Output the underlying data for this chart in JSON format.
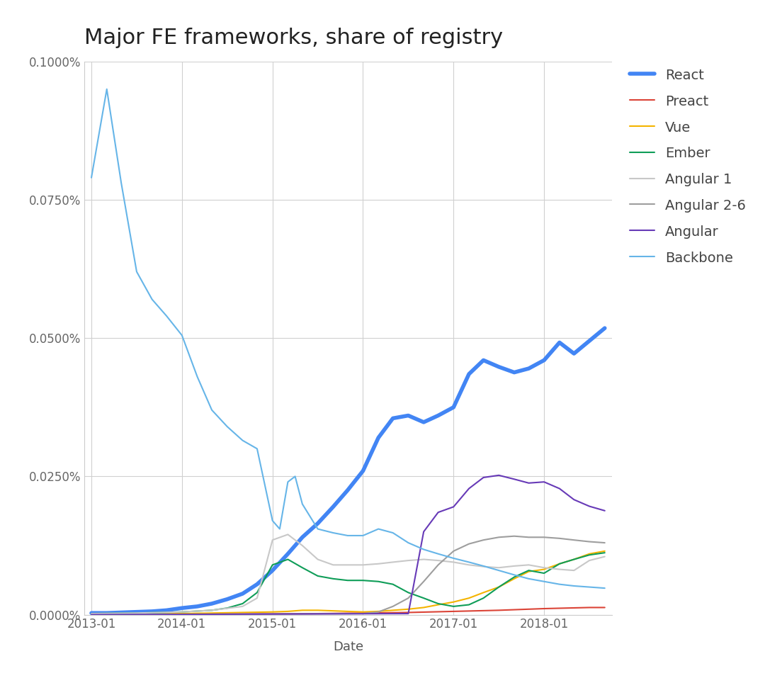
{
  "title": "Major FE frameworks, share of registry",
  "xlabel": "Date",
  "ylabel": "",
  "background_color": "#ffffff",
  "plot_bg_color": "#ffffff",
  "ylim": [
    0,
    0.001
  ],
  "yticks": [
    0.0,
    0.00025,
    0.0005,
    0.00075,
    0.001
  ],
  "ytick_labels": [
    "0.0000%",
    "0.0250%",
    "0.0500%",
    "0.0750%",
    "0.1000%"
  ],
  "xtick_labels": [
    "2013-01",
    "2014-01",
    "2015-01",
    "2016-01",
    "2017-01",
    "2018-01"
  ],
  "xtick_positions": [
    2013.0,
    2014.0,
    2015.0,
    2016.0,
    2017.0,
    2018.0
  ],
  "xlim": [
    2012.92,
    2018.75
  ],
  "series": {
    "React": {
      "color": "#4285f4",
      "linewidth": 4.0,
      "data": [
        [
          2013.0,
          3e-06
        ],
        [
          2013.17,
          3e-06
        ],
        [
          2013.33,
          4e-06
        ],
        [
          2013.5,
          5e-06
        ],
        [
          2013.67,
          6e-06
        ],
        [
          2013.83,
          8e-06
        ],
        [
          2014.0,
          1.2e-05
        ],
        [
          2014.17,
          1.5e-05
        ],
        [
          2014.33,
          2e-05
        ],
        [
          2014.5,
          2.8e-05
        ],
        [
          2014.67,
          3.8e-05
        ],
        [
          2014.83,
          5.5e-05
        ],
        [
          2015.0,
          8e-05
        ],
        [
          2015.17,
          0.00011
        ],
        [
          2015.33,
          0.00014
        ],
        [
          2015.5,
          0.000165
        ],
        [
          2015.67,
          0.000195
        ],
        [
          2015.83,
          0.000225
        ],
        [
          2016.0,
          0.00026
        ],
        [
          2016.17,
          0.00032
        ],
        [
          2016.33,
          0.000355
        ],
        [
          2016.5,
          0.00036
        ],
        [
          2016.67,
          0.000348
        ],
        [
          2016.83,
          0.00036
        ],
        [
          2017.0,
          0.000375
        ],
        [
          2017.17,
          0.000435
        ],
        [
          2017.33,
          0.00046
        ],
        [
          2017.5,
          0.000448
        ],
        [
          2017.67,
          0.000438
        ],
        [
          2017.83,
          0.000445
        ],
        [
          2018.0,
          0.00046
        ],
        [
          2018.17,
          0.000492
        ],
        [
          2018.33,
          0.000472
        ],
        [
          2018.5,
          0.000495
        ],
        [
          2018.67,
          0.000518
        ]
      ]
    },
    "Preact": {
      "color": "#db4437",
      "linewidth": 1.5,
      "data": [
        [
          2013.0,
          5e-07
        ],
        [
          2015.0,
          1.5e-06
        ],
        [
          2015.5,
          2e-06
        ],
        [
          2016.0,
          3e-06
        ],
        [
          2016.5,
          4e-06
        ],
        [
          2017.0,
          6e-06
        ],
        [
          2017.5,
          8e-06
        ],
        [
          2018.0,
          1.1e-05
        ],
        [
          2018.5,
          1.3e-05
        ],
        [
          2018.67,
          1.3e-05
        ]
      ]
    },
    "Vue": {
      "color": "#f4b400",
      "linewidth": 1.5,
      "data": [
        [
          2013.0,
          5e-07
        ],
        [
          2014.0,
          2e-06
        ],
        [
          2014.33,
          3e-06
        ],
        [
          2014.67,
          4e-06
        ],
        [
          2015.0,
          5e-06
        ],
        [
          2015.17,
          6e-06
        ],
        [
          2015.33,
          8e-06
        ],
        [
          2015.5,
          8e-06
        ],
        [
          2015.67,
          7e-06
        ],
        [
          2015.83,
          6e-06
        ],
        [
          2016.0,
          5e-06
        ],
        [
          2016.17,
          6e-06
        ],
        [
          2016.33,
          8e-06
        ],
        [
          2016.5,
          1e-05
        ],
        [
          2016.67,
          1.3e-05
        ],
        [
          2016.83,
          1.8e-05
        ],
        [
          2017.0,
          2.3e-05
        ],
        [
          2017.17,
          3e-05
        ],
        [
          2017.33,
          4e-05
        ],
        [
          2017.5,
          5e-05
        ],
        [
          2017.67,
          6.5e-05
        ],
        [
          2017.83,
          7.8e-05
        ],
        [
          2018.0,
          8.2e-05
        ],
        [
          2018.17,
          9.2e-05
        ],
        [
          2018.33,
          0.0001
        ],
        [
          2018.5,
          0.00011
        ],
        [
          2018.67,
          0.000115
        ]
      ]
    },
    "Ember": {
      "color": "#0f9d58",
      "linewidth": 1.5,
      "data": [
        [
          2013.0,
          2e-06
        ],
        [
          2013.5,
          3e-06
        ],
        [
          2014.0,
          5e-06
        ],
        [
          2014.33,
          8e-06
        ],
        [
          2014.5,
          1.2e-05
        ],
        [
          2014.67,
          2e-05
        ],
        [
          2014.83,
          4e-05
        ],
        [
          2015.0,
          9e-05
        ],
        [
          2015.17,
          0.0001
        ],
        [
          2015.33,
          8.5e-05
        ],
        [
          2015.5,
          7e-05
        ],
        [
          2015.67,
          6.5e-05
        ],
        [
          2015.83,
          6.2e-05
        ],
        [
          2016.0,
          6.2e-05
        ],
        [
          2016.17,
          6e-05
        ],
        [
          2016.33,
          5.5e-05
        ],
        [
          2016.5,
          4e-05
        ],
        [
          2016.67,
          3e-05
        ],
        [
          2016.83,
          2e-05
        ],
        [
          2017.0,
          1.5e-05
        ],
        [
          2017.17,
          1.8e-05
        ],
        [
          2017.33,
          3e-05
        ],
        [
          2017.5,
          5e-05
        ],
        [
          2017.67,
          6.8e-05
        ],
        [
          2017.83,
          8e-05
        ],
        [
          2018.0,
          7.5e-05
        ],
        [
          2018.17,
          9.2e-05
        ],
        [
          2018.33,
          0.0001
        ],
        [
          2018.5,
          0.000108
        ],
        [
          2018.67,
          0.000112
        ]
      ]
    },
    "Angular 1": {
      "color": "#c8c8c8",
      "linewidth": 1.5,
      "data": [
        [
          2013.0,
          2e-06
        ],
        [
          2013.5,
          3e-06
        ],
        [
          2014.0,
          5e-06
        ],
        [
          2014.33,
          8e-06
        ],
        [
          2014.67,
          1.5e-05
        ],
        [
          2014.83,
          3e-05
        ],
        [
          2015.0,
          0.000135
        ],
        [
          2015.17,
          0.000145
        ],
        [
          2015.33,
          0.000125
        ],
        [
          2015.5,
          0.0001
        ],
        [
          2015.67,
          9e-05
        ],
        [
          2015.83,
          9e-05
        ],
        [
          2016.0,
          9e-05
        ],
        [
          2016.17,
          9.2e-05
        ],
        [
          2016.33,
          9.5e-05
        ],
        [
          2016.5,
          9.8e-05
        ],
        [
          2016.67,
          0.0001
        ],
        [
          2016.83,
          9.8e-05
        ],
        [
          2017.0,
          9.5e-05
        ],
        [
          2017.17,
          9e-05
        ],
        [
          2017.33,
          8.7e-05
        ],
        [
          2017.5,
          8.5e-05
        ],
        [
          2017.67,
          8.8e-05
        ],
        [
          2017.83,
          9e-05
        ],
        [
          2018.0,
          8.5e-05
        ],
        [
          2018.17,
          8.2e-05
        ],
        [
          2018.33,
          8e-05
        ],
        [
          2018.5,
          9.8e-05
        ],
        [
          2018.67,
          0.000105
        ]
      ]
    },
    "Angular 2-6": {
      "color": "#9e9e9e",
      "linewidth": 1.5,
      "data": [
        [
          2013.0,
          0.0
        ],
        [
          2016.0,
          2e-06
        ],
        [
          2016.17,
          5e-06
        ],
        [
          2016.33,
          1.5e-05
        ],
        [
          2016.5,
          3e-05
        ],
        [
          2016.67,
          6e-05
        ],
        [
          2016.83,
          9e-05
        ],
        [
          2017.0,
          0.000115
        ],
        [
          2017.17,
          0.000128
        ],
        [
          2017.33,
          0.000135
        ],
        [
          2017.5,
          0.00014
        ],
        [
          2017.67,
          0.000142
        ],
        [
          2017.83,
          0.00014
        ],
        [
          2018.0,
          0.00014
        ],
        [
          2018.17,
          0.000138
        ],
        [
          2018.33,
          0.000135
        ],
        [
          2018.5,
          0.000132
        ],
        [
          2018.67,
          0.00013
        ]
      ]
    },
    "Angular": {
      "color": "#673ab7",
      "linewidth": 1.5,
      "data": [
        [
          2013.0,
          0.0
        ],
        [
          2016.5,
          2e-06
        ],
        [
          2016.67,
          0.00015
        ],
        [
          2016.83,
          0.000185
        ],
        [
          2017.0,
          0.000195
        ],
        [
          2017.17,
          0.000228
        ],
        [
          2017.33,
          0.000248
        ],
        [
          2017.5,
          0.000252
        ],
        [
          2017.67,
          0.000245
        ],
        [
          2017.83,
          0.000238
        ],
        [
          2018.0,
          0.00024
        ],
        [
          2018.17,
          0.000228
        ],
        [
          2018.33,
          0.000208
        ],
        [
          2018.5,
          0.000196
        ],
        [
          2018.67,
          0.000188
        ]
      ]
    },
    "Backbone": {
      "color": "#66b5e8",
      "linewidth": 1.5,
      "data": [
        [
          2013.0,
          0.00079
        ],
        [
          2013.17,
          0.00095
        ],
        [
          2013.33,
          0.00078
        ],
        [
          2013.5,
          0.00062
        ],
        [
          2013.67,
          0.00057
        ],
        [
          2013.83,
          0.00054
        ],
        [
          2014.0,
          0.000505
        ],
        [
          2014.17,
          0.00043
        ],
        [
          2014.33,
          0.00037
        ],
        [
          2014.5,
          0.00034
        ],
        [
          2014.67,
          0.000315
        ],
        [
          2014.83,
          0.0003
        ],
        [
          2015.0,
          0.00017
        ],
        [
          2015.08,
          0.000155
        ],
        [
          2015.17,
          0.00024
        ],
        [
          2015.25,
          0.00025
        ],
        [
          2015.33,
          0.0002
        ],
        [
          2015.5,
          0.000155
        ],
        [
          2015.67,
          0.000148
        ],
        [
          2015.83,
          0.000143
        ],
        [
          2016.0,
          0.000143
        ],
        [
          2016.17,
          0.000155
        ],
        [
          2016.33,
          0.000148
        ],
        [
          2016.5,
          0.00013
        ],
        [
          2016.67,
          0.000118
        ],
        [
          2016.83,
          0.00011
        ],
        [
          2017.0,
          0.000102
        ],
        [
          2017.17,
          9.5e-05
        ],
        [
          2017.33,
          8.8e-05
        ],
        [
          2017.5,
          8e-05
        ],
        [
          2017.67,
          7.2e-05
        ],
        [
          2017.83,
          6.5e-05
        ],
        [
          2018.0,
          6e-05
        ],
        [
          2018.17,
          5.5e-05
        ],
        [
          2018.33,
          5.2e-05
        ],
        [
          2018.5,
          5e-05
        ],
        [
          2018.67,
          4.8e-05
        ]
      ]
    }
  },
  "legend_order": [
    "React",
    "Preact",
    "Vue",
    "Ember",
    "Angular 1",
    "Angular 2-6",
    "Angular",
    "Backbone"
  ],
  "title_fontsize": 22,
  "label_fontsize": 13,
  "tick_fontsize": 12,
  "legend_fontsize": 14
}
